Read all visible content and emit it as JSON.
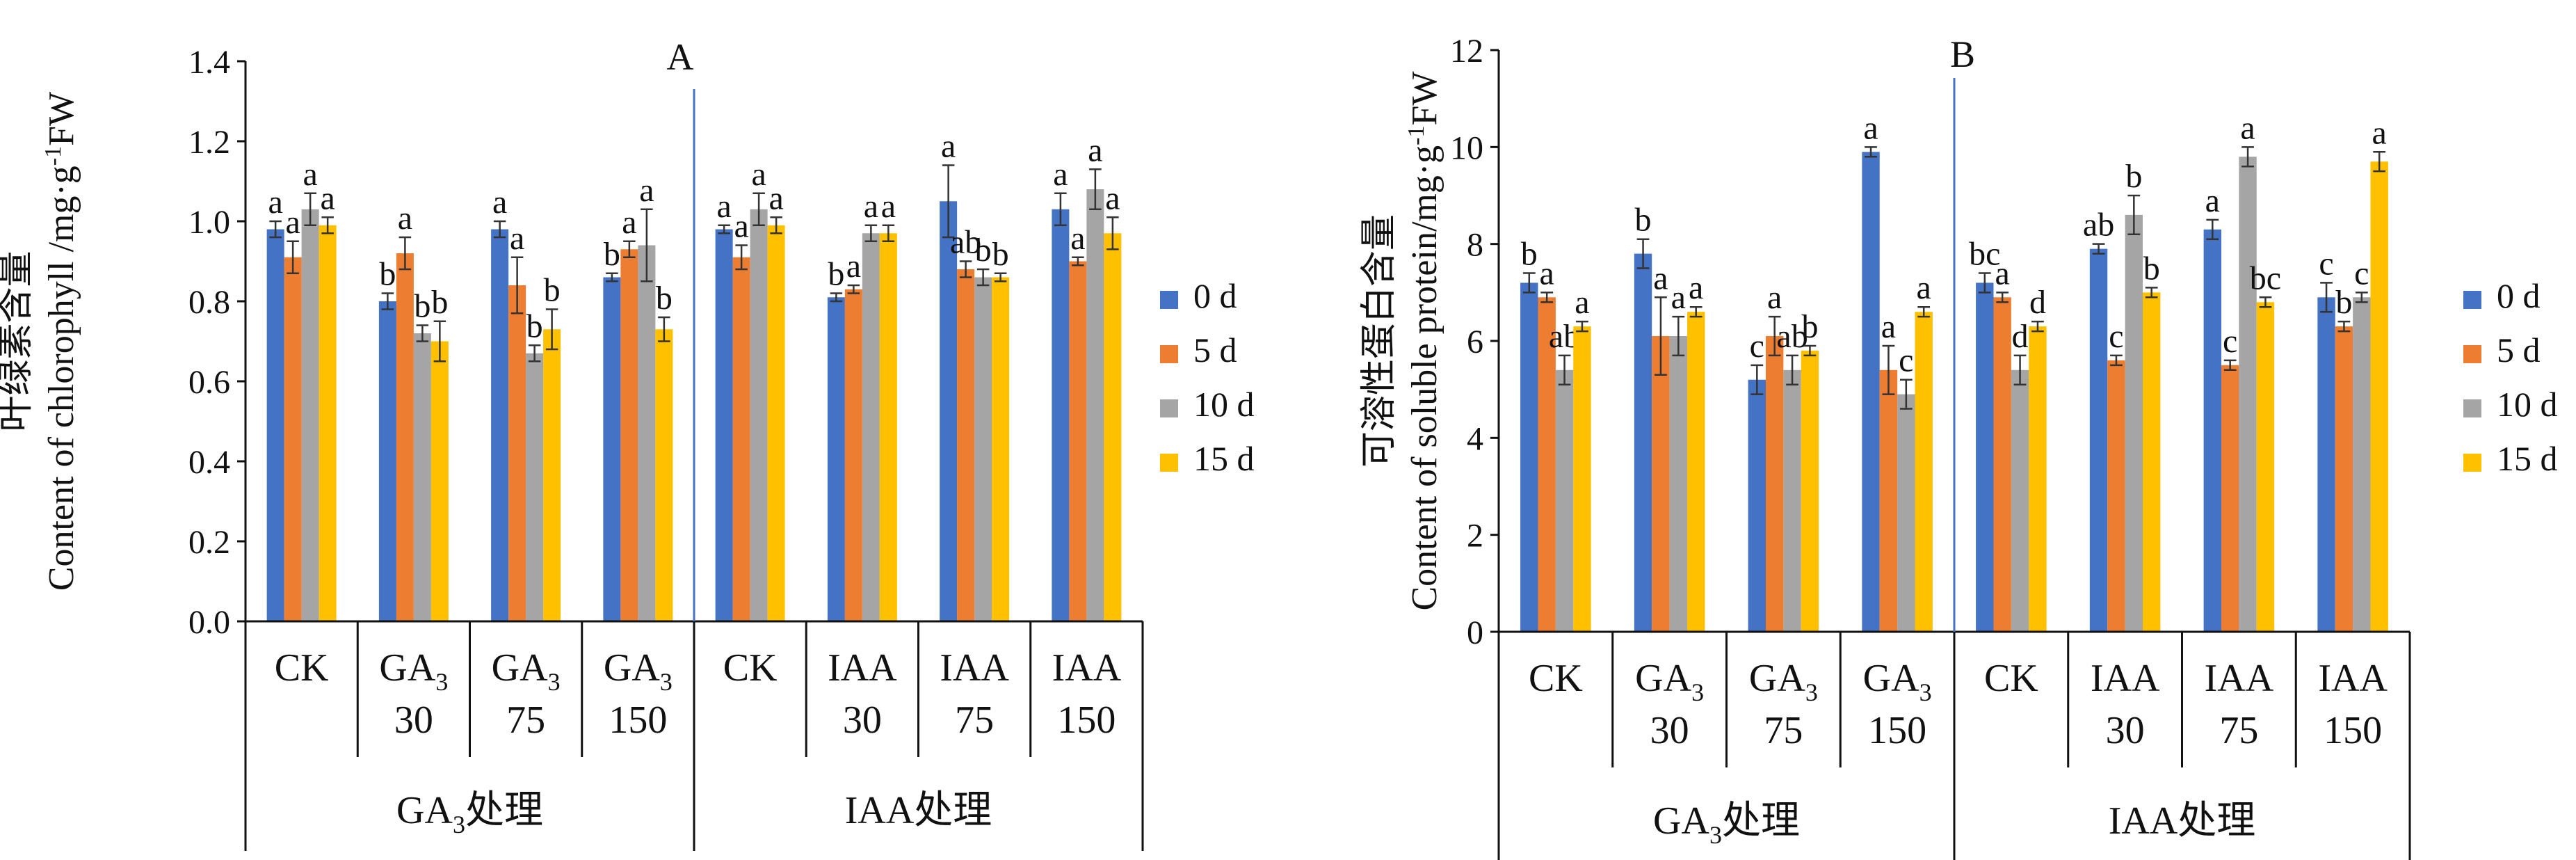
{
  "colors": {
    "series": [
      "#4472C4",
      "#ED7D31",
      "#A5A5A5",
      "#FFC000"
    ],
    "axis": "#111111",
    "divider": "#4472C4"
  },
  "legend": [
    "0 d",
    "5 d",
    "10 d",
    "15 d"
  ],
  "groups": [
    {
      "pre": "GA",
      "sub": "3",
      "post": "处理"
    },
    {
      "pre": "IAA处理",
      "sub": "",
      "post": ""
    }
  ],
  "categories": [
    {
      "line1": "CK",
      "sub": "",
      "line2": ""
    },
    {
      "line1": "GA",
      "sub": "3",
      "line2": "30"
    },
    {
      "line1": "GA",
      "sub": "3",
      "line2": "75"
    },
    {
      "line1": "GA",
      "sub": "3",
      "line2": "150"
    },
    {
      "line1": "CK",
      "sub": "",
      "line2": ""
    },
    {
      "line1": "IAA",
      "sub": "",
      "line2": "30"
    },
    {
      "line1": "IAA",
      "sub": "",
      "line2": "75"
    },
    {
      "line1": "IAA",
      "sub": "",
      "line2": "150"
    }
  ],
  "chart_data": [
    {
      "type": "bar",
      "title": "A",
      "ylabel_zh": "叶绿素含量",
      "ylabel_en": "Content of chlorophyll /mg·g",
      "ylabel_sup": "-1",
      "ylabel_tail": "FW",
      "ylim": [
        0,
        1.4
      ],
      "yticks": [
        "0.0",
        "0.2",
        "0.4",
        "0.6",
        "0.8",
        "1.0",
        "1.2",
        "1.4"
      ],
      "series": [
        {
          "name": "0 d",
          "values": [
            0.98,
            0.8,
            0.98,
            0.86,
            0.98,
            0.81,
            1.05,
            1.03
          ],
          "errors": [
            0.02,
            0.02,
            0.02,
            0.01,
            0.01,
            0.01,
            0.09,
            0.04
          ],
          "letters": [
            "a",
            "b",
            "a",
            "b",
            "a",
            "b",
            "a",
            "a"
          ]
        },
        {
          "name": "5 d",
          "values": [
            0.91,
            0.92,
            0.84,
            0.93,
            0.91,
            0.83,
            0.88,
            0.9
          ],
          "errors": [
            0.04,
            0.04,
            0.07,
            0.02,
            0.03,
            0.01,
            0.02,
            0.01
          ],
          "letters": [
            "a",
            "a",
            "a",
            "a",
            "a",
            "a",
            "ab",
            "a"
          ]
        },
        {
          "name": "10 d",
          "values": [
            1.03,
            0.72,
            0.67,
            0.94,
            1.03,
            0.97,
            0.86,
            1.08
          ],
          "errors": [
            0.04,
            0.02,
            0.02,
            0.09,
            0.04,
            0.02,
            0.02,
            0.05
          ],
          "letters": [
            "a",
            "b",
            "b",
            "a",
            "a",
            "a",
            "b",
            "a"
          ]
        },
        {
          "name": "15 d",
          "values": [
            0.99,
            0.7,
            0.73,
            0.73,
            0.99,
            0.97,
            0.86,
            0.97
          ],
          "errors": [
            0.02,
            0.05,
            0.05,
            0.03,
            0.02,
            0.02,
            0.01,
            0.04
          ],
          "letters": [
            "a",
            "b",
            "b",
            "b",
            "a",
            "a",
            "b",
            "a"
          ]
        }
      ]
    },
    {
      "type": "bar",
      "title": "B",
      "ylabel_zh": "可溶性蛋白含量",
      "ylabel_en": "Content of soluble protein/mg·g",
      "ylabel_sup": "-1",
      "ylabel_tail": "FW",
      "ylim": [
        0,
        12
      ],
      "yticks": [
        "0",
        "2",
        "4",
        "6",
        "8",
        "10",
        "12"
      ],
      "series": [
        {
          "name": "0 d",
          "values": [
            7.2,
            7.8,
            5.2,
            9.9,
            7.2,
            7.9,
            8.3,
            6.9
          ],
          "errors": [
            0.2,
            0.3,
            0.3,
            0.1,
            0.2,
            0.1,
            0.2,
            0.3
          ],
          "letters": [
            "b",
            "b",
            "c",
            "a",
            "bc",
            "ab",
            "a",
            "c"
          ]
        },
        {
          "name": "5 d",
          "values": [
            6.9,
            6.1,
            6.1,
            5.4,
            6.9,
            5.6,
            5.5,
            6.3
          ],
          "errors": [
            0.1,
            0.8,
            0.4,
            0.5,
            0.1,
            0.1,
            0.1,
            0.1
          ],
          "letters": [
            "a",
            "a",
            "a",
            "a",
            "a",
            "c",
            "c",
            "b"
          ]
        },
        {
          "name": "10 d",
          "values": [
            5.4,
            6.1,
            5.4,
            4.9,
            5.4,
            8.6,
            9.8,
            6.9
          ],
          "errors": [
            0.3,
            0.4,
            0.3,
            0.3,
            0.3,
            0.4,
            0.2,
            0.1
          ],
          "letters": [
            "ab",
            "a",
            "ab",
            "c",
            "d",
            "b",
            "a",
            "c"
          ]
        },
        {
          "name": "15 d",
          "values": [
            6.3,
            6.6,
            5.8,
            6.6,
            6.3,
            7.0,
            6.8,
            9.7
          ],
          "errors": [
            0.1,
            0.1,
            0.1,
            0.1,
            0.1,
            0.1,
            0.1,
            0.2
          ],
          "letters": [
            "a",
            "a",
            "b",
            "a",
            "d",
            "b",
            "bc",
            "a"
          ]
        }
      ]
    }
  ]
}
